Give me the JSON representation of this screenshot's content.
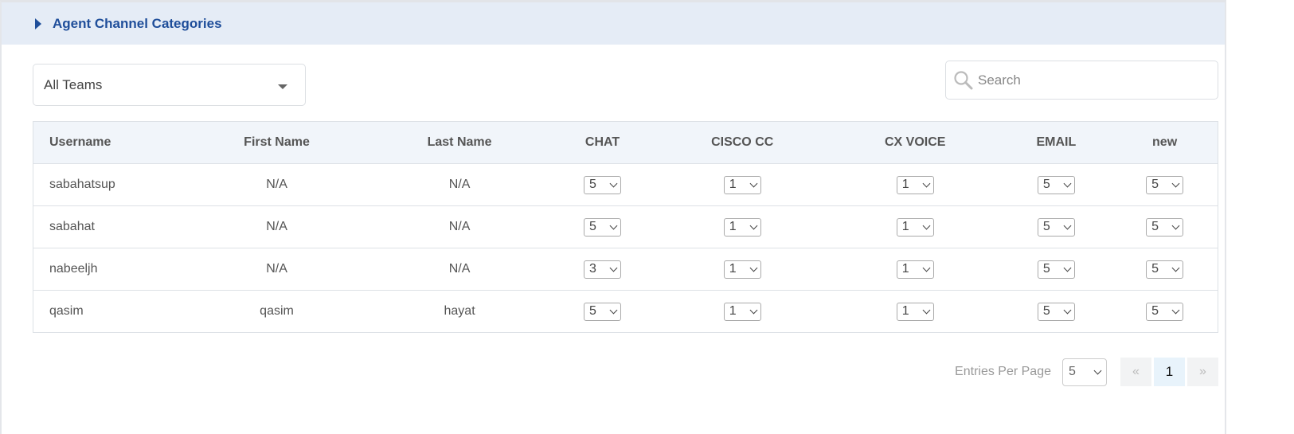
{
  "header": {
    "title": "Agent Channel Categories"
  },
  "filters": {
    "team": "All Teams",
    "search_placeholder": "Search"
  },
  "table": {
    "columns": [
      "Username",
      "First Name",
      "Last Name",
      "CHAT",
      "CISCO CC",
      "CX VOICE",
      "EMAIL",
      "new"
    ],
    "rows": [
      {
        "username": "sabahatsup",
        "first": "N/A",
        "last": "N/A",
        "vals": [
          "5",
          "1",
          "1",
          "5",
          "5"
        ]
      },
      {
        "username": "sabahat",
        "first": "N/A",
        "last": "N/A",
        "vals": [
          "5",
          "1",
          "1",
          "5",
          "5"
        ]
      },
      {
        "username": "nabeeljh",
        "first": "N/A",
        "last": "N/A",
        "vals": [
          "3",
          "1",
          "1",
          "5",
          "5"
        ]
      },
      {
        "username": "qasim",
        "first": "qasim",
        "last": "hayat",
        "vals": [
          "5",
          "1",
          "1",
          "5",
          "5"
        ]
      }
    ]
  },
  "pagination": {
    "entries_label": "Entries Per Page",
    "entries_value": "5",
    "prev": "«",
    "current": "1",
    "next": "»"
  }
}
